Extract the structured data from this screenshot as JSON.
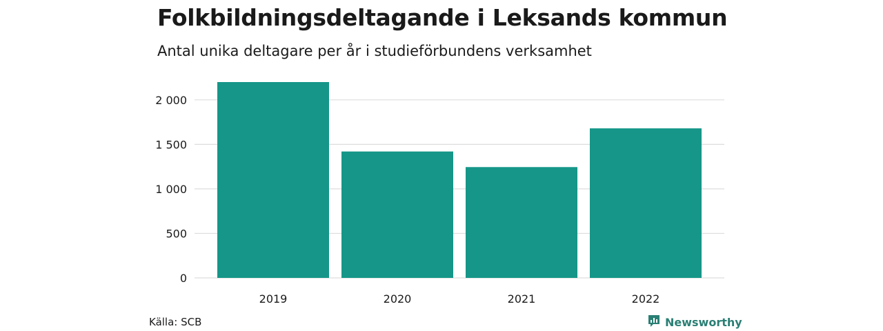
{
  "header": {
    "title": "Folkbildningsdeltagande i Leksands kommun",
    "subtitle": "Antal unika deltagare per år i studieförbundens verksamhet"
  },
  "footer": {
    "source": "Källa: SCB",
    "brand": "Newsworthy",
    "brand_icon": "newsworthy-logo-icon"
  },
  "colors": {
    "bar": "#159688",
    "grid": "#dddddd",
    "brand": "#2a7f74"
  },
  "chart_data": {
    "type": "bar",
    "categories": [
      "2019",
      "2020",
      "2021",
      "2022"
    ],
    "values": [
      2200,
      1420,
      1245,
      1680
    ],
    "xlabel": "",
    "ylabel": "",
    "ylim": [
      0,
      2200
    ],
    "yticks": [
      0,
      500,
      1000,
      1500,
      2000
    ],
    "ytick_labels": [
      "0",
      "500",
      "1 000",
      "1 500",
      "2 000"
    ],
    "grid": true,
    "legend": "none"
  }
}
